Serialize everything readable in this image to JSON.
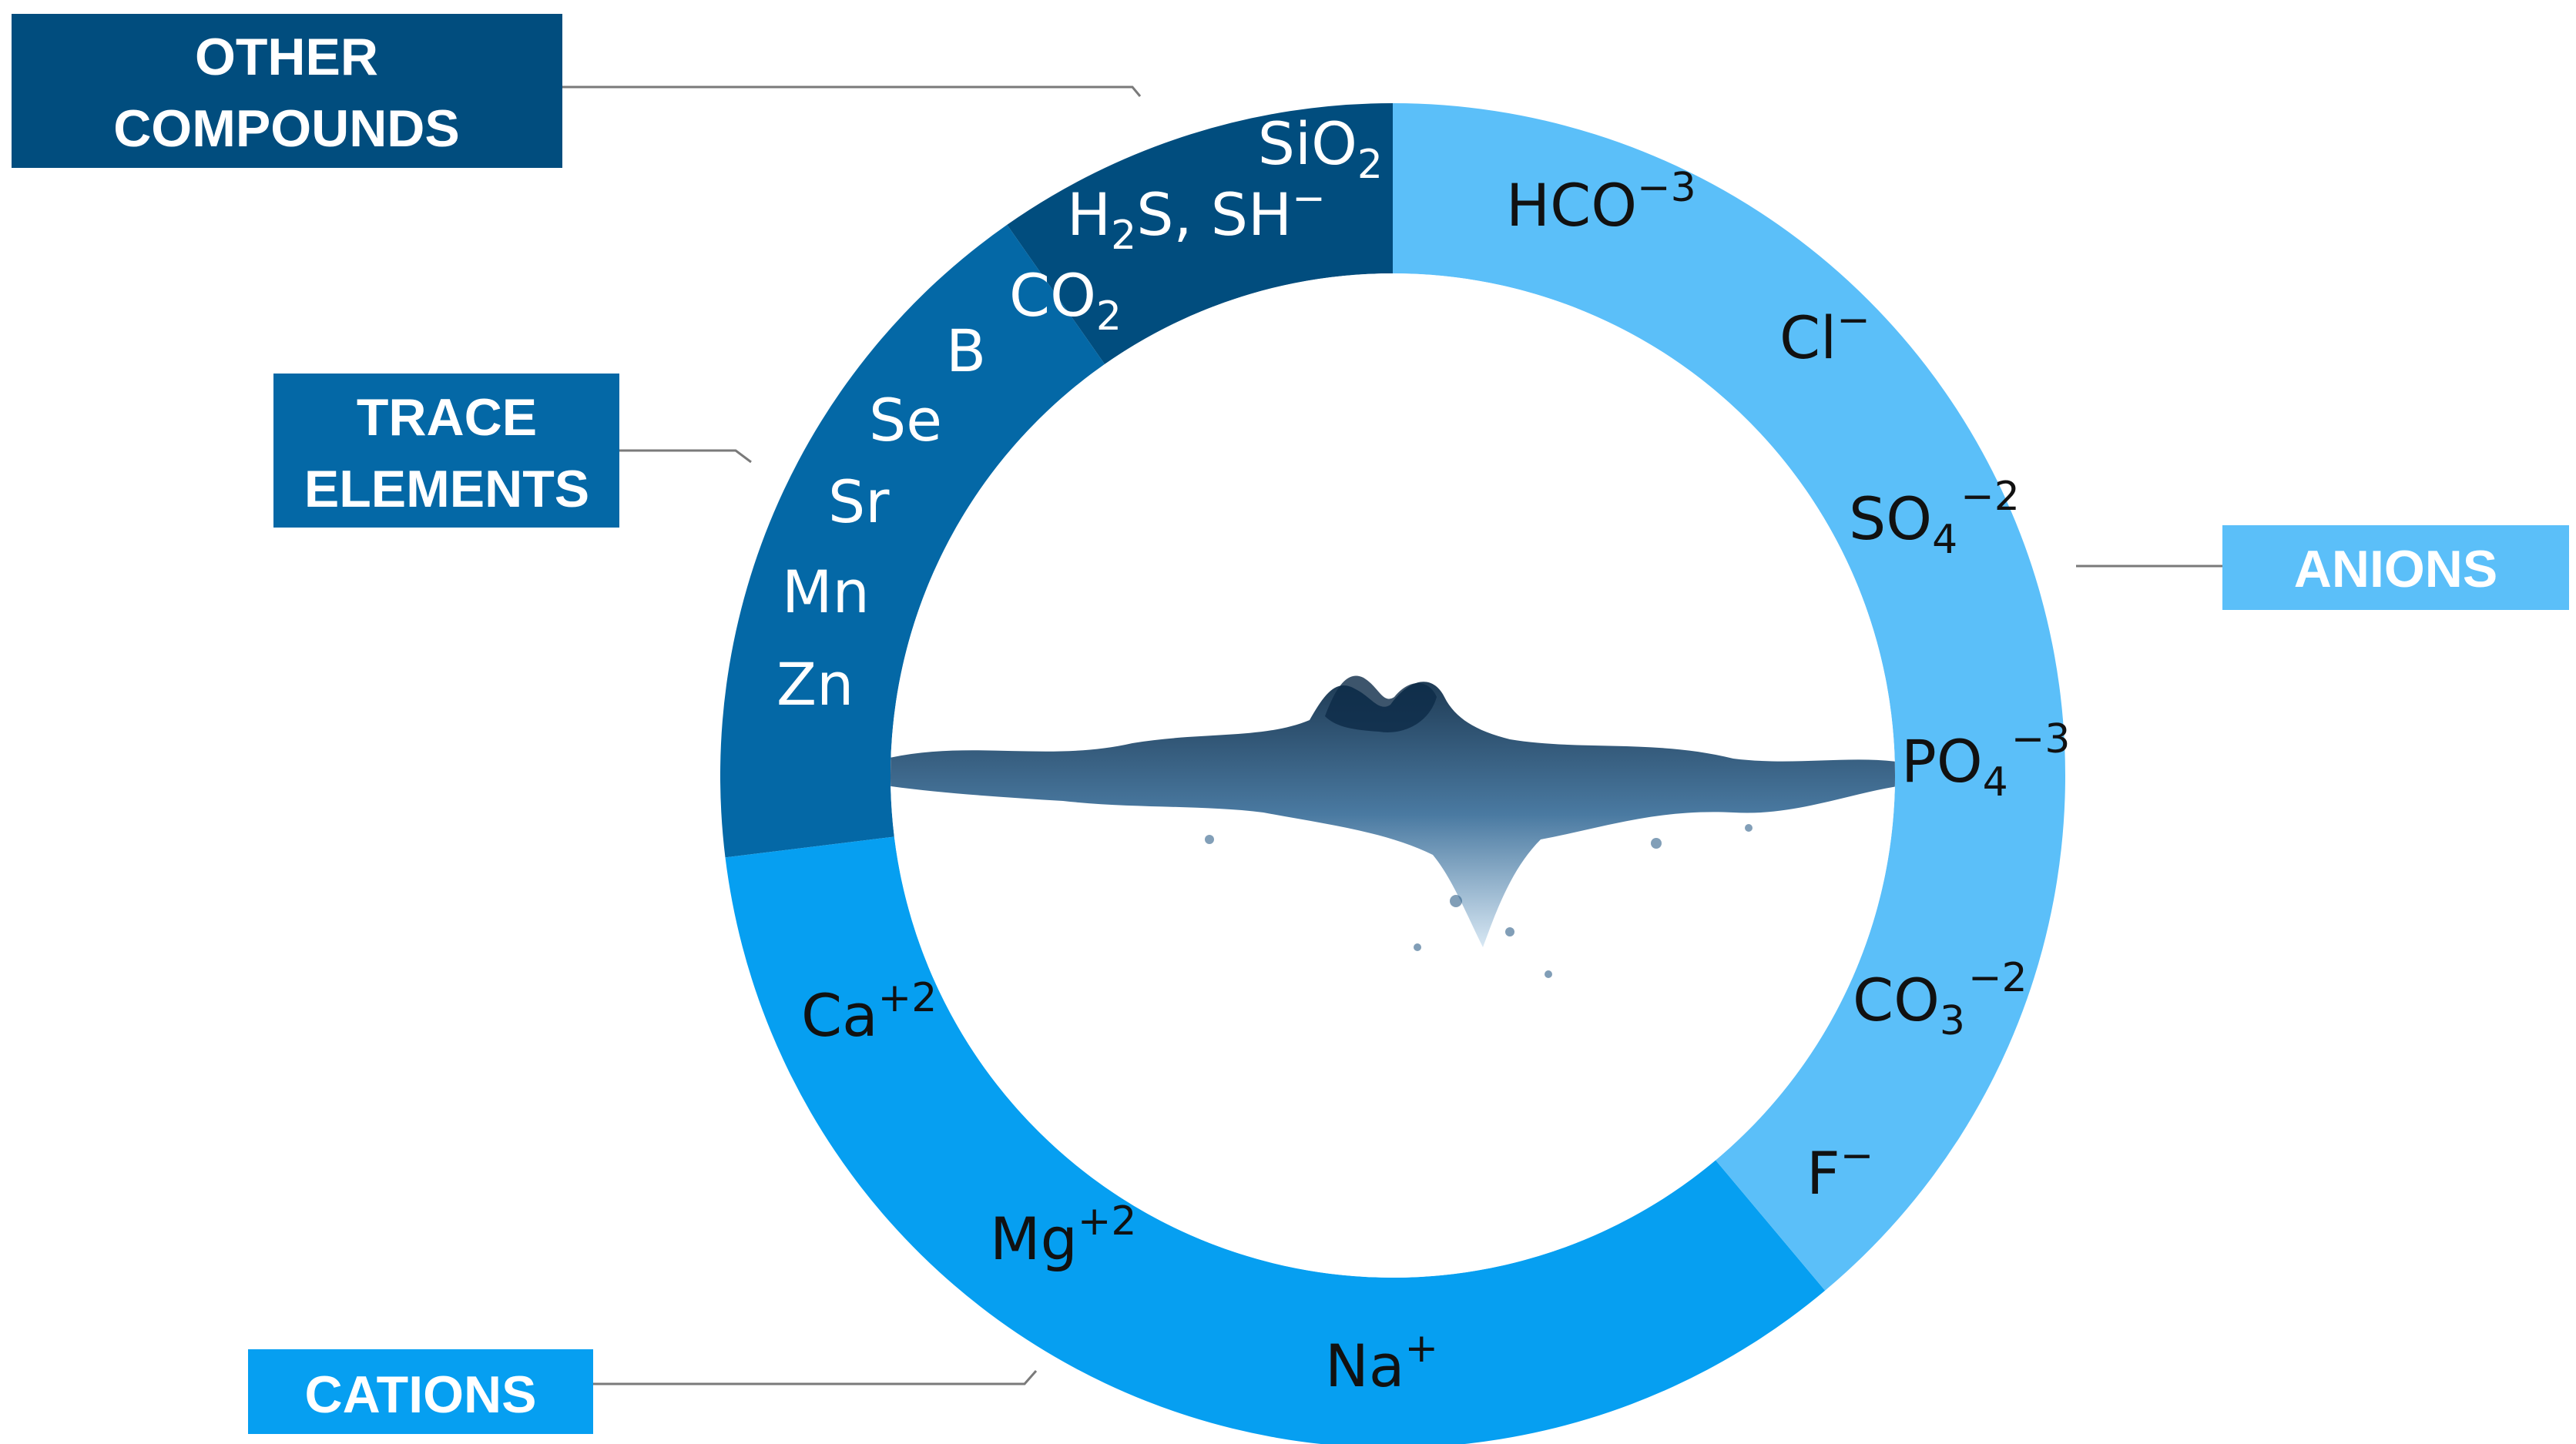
{
  "colors": {
    "other_compounds": "#014d7e",
    "trace_elements": "#0468a6",
    "cations": "#069ff1",
    "anions": "#5bbff9",
    "water": "#0c2b47"
  },
  "categories": {
    "other_compounds": {
      "line1": "OTHER",
      "line2": "COMPOUNDS"
    },
    "trace_elements": {
      "line1": "TRACE",
      "line2": "ELEMENTS"
    },
    "anions": {
      "line1": "ANIONS"
    },
    "cations": {
      "line1": "CATIONS"
    }
  },
  "ions": {
    "other_compounds": [
      {
        "base": "SiO",
        "sub": "2",
        "sup": ""
      },
      {
        "base": "H",
        "sub": "2",
        "rest": "S, SH",
        "sup": "−"
      },
      {
        "base": "CO",
        "sub": "2",
        "sup": ""
      }
    ],
    "trace_elements": [
      "B",
      "Se",
      "Sr",
      "Mn",
      "Zn"
    ],
    "anions": [
      {
        "base": "HCO",
        "sub": "",
        "sup": "−3"
      },
      {
        "base": "Cl",
        "sub": "",
        "sup": "−"
      },
      {
        "base": "SO",
        "sub": "4",
        "sup": "−2"
      },
      {
        "base": "PO",
        "sub": "4",
        "sup": "−3"
      },
      {
        "base": "CO",
        "sub": "3",
        "sup": "−2"
      },
      {
        "base": "F",
        "sub": "",
        "sup": "−"
      }
    ],
    "cations": [
      {
        "base": "Ca",
        "sup": "+2"
      },
      {
        "base": "Mg",
        "sup": "+2"
      },
      {
        "base": "Na",
        "sup": "+"
      }
    ]
  }
}
